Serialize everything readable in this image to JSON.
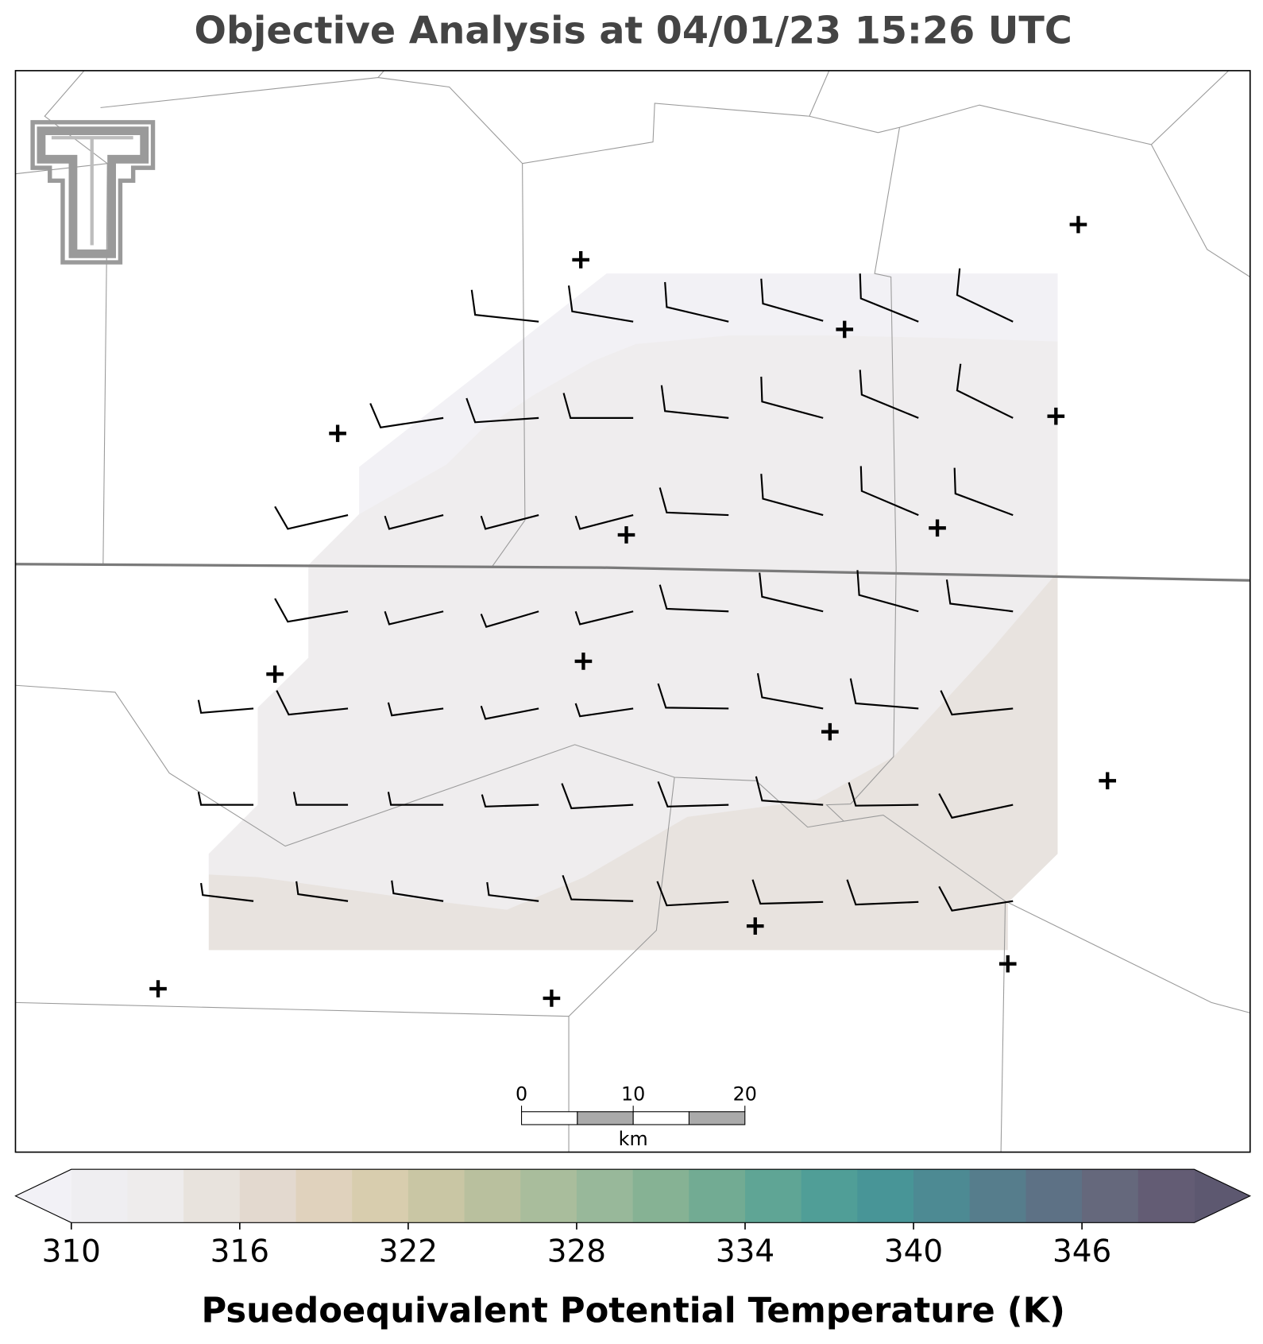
{
  "title": "Objective Analysis at 04/01/23 15:26 UTC",
  "colorbar": {
    "label": "Psuedoequivalent Potential Temperature (K)",
    "lim": [
      310,
      350
    ],
    "ticks": [
      310,
      316,
      322,
      328,
      334,
      340,
      346
    ],
    "levels": [
      310,
      312,
      314,
      316,
      318,
      320,
      322,
      324,
      326,
      328,
      330,
      332,
      334,
      336,
      338,
      340,
      342,
      344,
      346,
      348,
      350
    ],
    "colors": [
      "#efeef1",
      "#eeecec",
      "#e8e3dd",
      "#e3d9cf",
      "#e0d2bd",
      "#d8cdae",
      "#c9c6a4",
      "#b9c09e",
      "#a9bd9c",
      "#98b89a",
      "#86b294",
      "#72ab93",
      "#5fa595",
      "#509e97",
      "#489597",
      "#4d8a93",
      "#567d8c",
      "#5d7185",
      "#65687c",
      "#635c74"
    ],
    "extend_colors": [
      "#f2f1f6",
      "#5d5870"
    ]
  },
  "scale_bar": {
    "ticks": [
      0,
      10,
      20
    ],
    "unit": "km"
  }
}
